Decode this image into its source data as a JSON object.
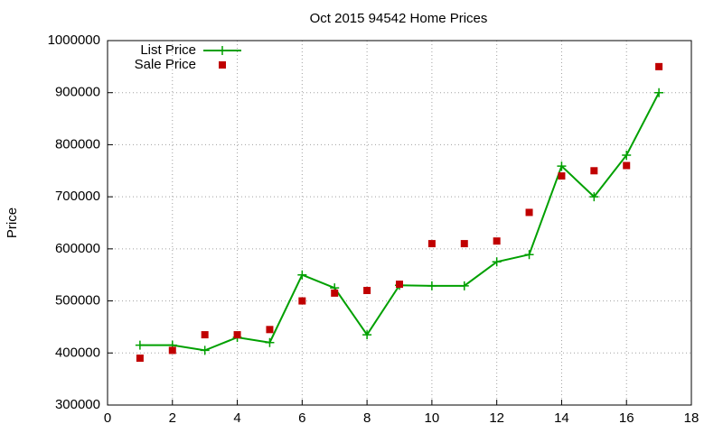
{
  "chart_data": {
    "type": "line",
    "title": "Oct 2015 94542 Home Prices",
    "y_label": "Price",
    "x": [
      1,
      2,
      3,
      4,
      5,
      6,
      7,
      8,
      9,
      10,
      11,
      12,
      13,
      14,
      15,
      16,
      17
    ],
    "series": [
      {
        "name": "List Price",
        "color": "#00a000",
        "style": "linespoints",
        "values": [
          415000,
          415000,
          405000,
          430000,
          420000,
          550000,
          525000,
          435000,
          530000,
          529000,
          529000,
          575000,
          589000,
          759000,
          700000,
          780000,
          900000
        ]
      },
      {
        "name": "Sale Price",
        "color": "#c00000",
        "style": "points",
        "values": [
          390000,
          405000,
          435000,
          435000,
          445000,
          500000,
          515000,
          520000,
          532000,
          610000,
          610000,
          615000,
          670000,
          740000,
          750000,
          760000,
          950000
        ]
      }
    ],
    "xlim": [
      0,
      18
    ],
    "xticks": [
      0,
      2,
      4,
      6,
      8,
      10,
      12,
      14,
      16,
      18
    ],
    "ylim": [
      300000,
      1000000
    ],
    "yticks": [
      300000,
      400000,
      500000,
      600000,
      700000,
      800000,
      900000,
      1000000
    ],
    "grid": true,
    "legend": "top-left"
  }
}
